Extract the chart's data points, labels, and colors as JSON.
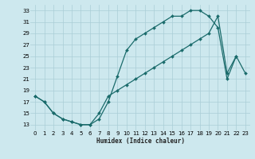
{
  "xlabel": "Humidex (Indice chaleur)",
  "bg_color": "#cde8ee",
  "grid_color": "#aacdd6",
  "line_color": "#1a6b6b",
  "xlim": [
    -0.5,
    23.5
  ],
  "ylim": [
    12,
    34
  ],
  "xticks": [
    0,
    1,
    2,
    3,
    4,
    5,
    6,
    7,
    8,
    9,
    10,
    11,
    12,
    13,
    14,
    15,
    16,
    17,
    18,
    19,
    20,
    21,
    22,
    23
  ],
  "yticks": [
    13,
    15,
    17,
    19,
    21,
    23,
    25,
    27,
    29,
    31,
    33
  ],
  "curve1_x": [
    0,
    1,
    2,
    3,
    4,
    5,
    6,
    7,
    8,
    9,
    10,
    11,
    12,
    13,
    14,
    15,
    16,
    17,
    18,
    19,
    20,
    21,
    22
  ],
  "curve1_y": [
    18,
    17,
    15,
    14,
    13.5,
    13,
    13,
    14,
    17,
    21.5,
    26,
    28,
    29,
    30,
    31,
    32,
    32,
    33,
    33,
    32,
    30,
    21,
    25
  ],
  "curve2_x": [
    0,
    1,
    2,
    3,
    4,
    5,
    6,
    7,
    8,
    9,
    10,
    11,
    12,
    13,
    14,
    15,
    16,
    17,
    18,
    19,
    20,
    21,
    22,
    23
  ],
  "curve2_y": [
    18,
    17,
    15,
    14,
    13.5,
    13,
    13,
    15,
    18,
    19,
    20,
    21,
    22,
    23,
    24,
    25,
    26,
    27,
    28,
    29,
    32,
    22,
    25,
    22
  ]
}
